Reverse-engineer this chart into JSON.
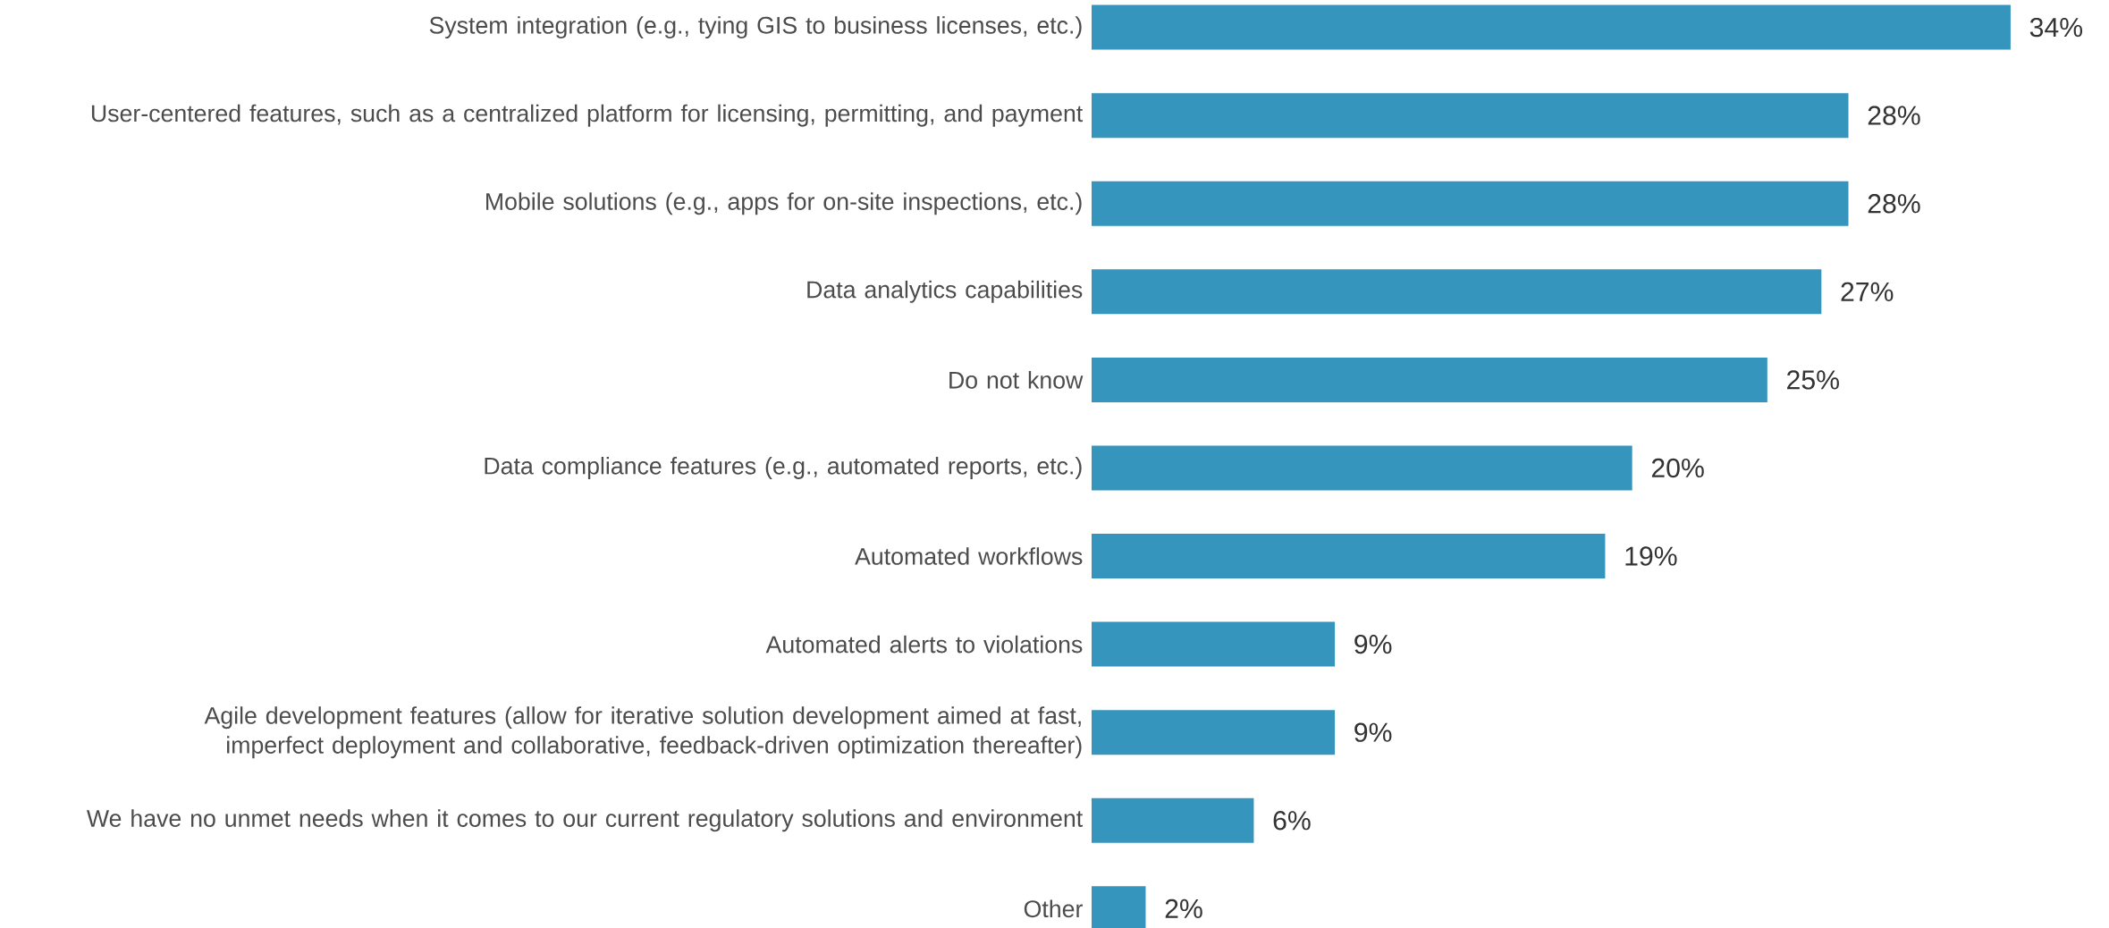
{
  "chart_data": {
    "type": "bar",
    "orientation": "horizontal",
    "categories": [
      "System integration (e.g., tying GIS to business licenses, etc.)",
      "User-centered features, such as a centralized platform for licensing, permitting, and payment",
      "Mobile solutions (e.g., apps for on-site inspections, etc.)",
      "Data analytics capabilities",
      "Do not know",
      "Data compliance features (e.g., automated reports, etc.)",
      "Automated workflows",
      "Automated alerts to violations",
      "Agile development features (allow for iterative solution development aimed at fast, imperfect deployment and collaborative, feedback-driven optimization thereafter)",
      "We have no unmet needs when it comes to our current regulatory solutions and environment",
      "Other"
    ],
    "values": [
      34,
      28,
      28,
      27,
      25,
      20,
      19,
      9,
      9,
      6,
      2
    ],
    "value_labels": [
      "34%",
      "28%",
      "28%",
      "27%",
      "25%",
      "20%",
      "19%",
      "9%",
      "9%",
      "6%",
      "2%"
    ],
    "color": "#3595bd"
  }
}
